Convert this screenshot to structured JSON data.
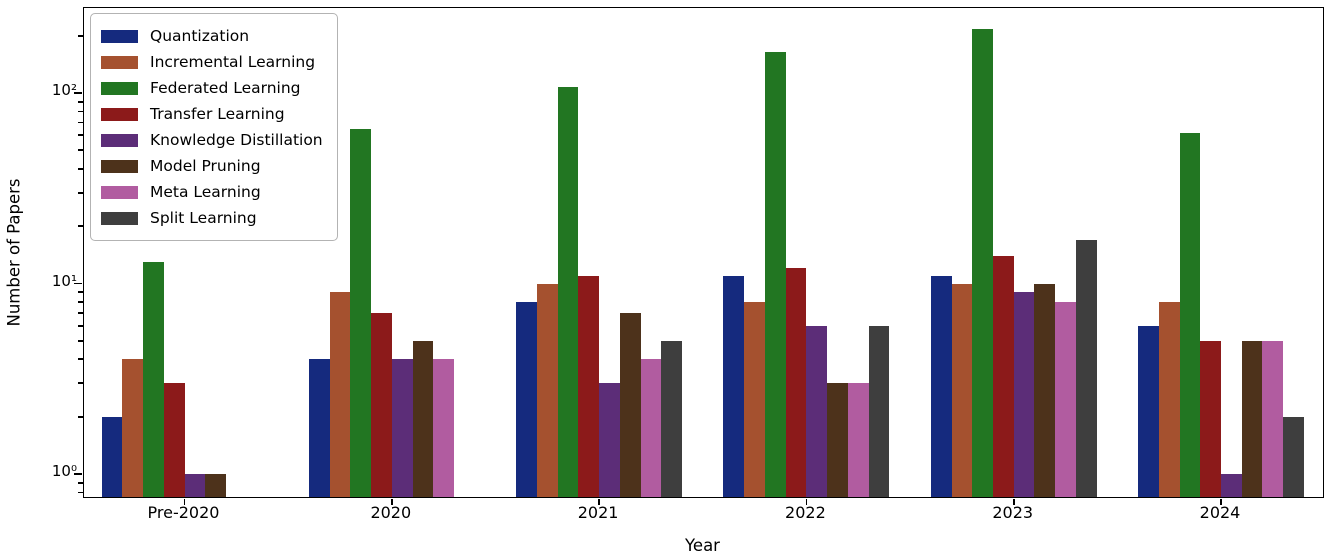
{
  "chart_data": {
    "type": "bar",
    "title": "",
    "xlabel": "Year",
    "ylabel": "Number of Papers",
    "yscale": "log",
    "ylim": [
      0.76,
      280
    ],
    "grid": false,
    "legend_position": "upper left",
    "categories": [
      "Pre-2020",
      "2020",
      "2021",
      "2022",
      "2023",
      "2024"
    ],
    "y_major_ticks": [
      1,
      10,
      100
    ],
    "y_major_tick_labels": [
      "10⁰",
      "10¹",
      "10²"
    ],
    "series": [
      {
        "name": "Quantization",
        "color": "#152a7e",
        "values": [
          2,
          4,
          8,
          11,
          11,
          6
        ]
      },
      {
        "name": "Incremental Learning",
        "color": "#a5512f",
        "values": [
          4,
          9,
          10,
          8,
          10,
          8
        ]
      },
      {
        "name": "Federated Learning",
        "color": "#227622",
        "values": [
          13,
          65,
          108,
          164,
          218,
          62
        ]
      },
      {
        "name": "Transfer Learning",
        "color": "#8c1a1a",
        "values": [
          3,
          7,
          11,
          12,
          14,
          5
        ]
      },
      {
        "name": "Knowledge Distillation",
        "color": "#5c2d78",
        "values": [
          1,
          4,
          3,
          6,
          9,
          1
        ]
      },
      {
        "name": "Model Pruning",
        "color": "#4d321b",
        "values": [
          1,
          5,
          7,
          3,
          10,
          5
        ]
      },
      {
        "name": "Meta Learning",
        "color": "#b15ca0",
        "values": [
          0,
          4,
          4,
          3,
          8,
          5
        ]
      },
      {
        "name": "Split Learning",
        "color": "#3e3e3e",
        "values": [
          0,
          0,
          5,
          6,
          17,
          2
        ]
      }
    ]
  }
}
